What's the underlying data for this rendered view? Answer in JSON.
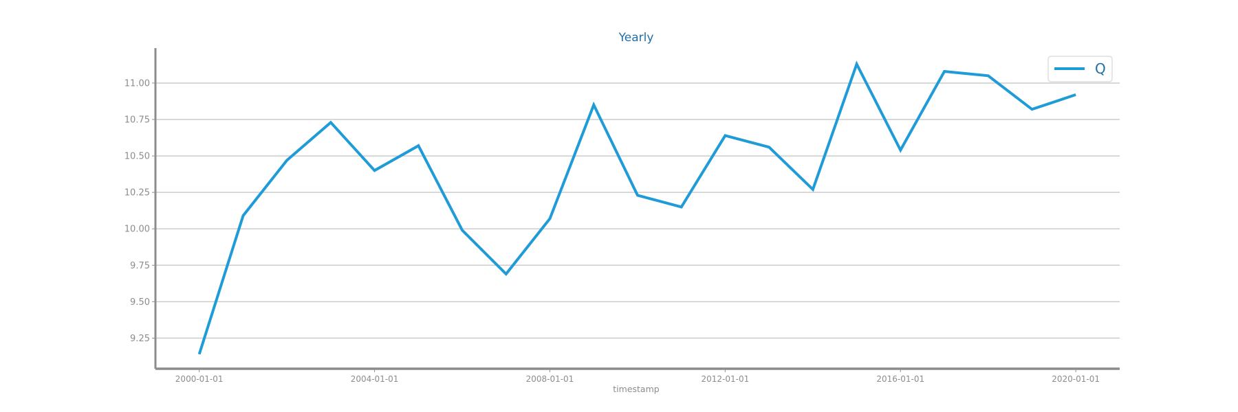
{
  "colors": {
    "series": "#1f9bd7",
    "title": "#1f6fa8",
    "axis": "#8c8c8c",
    "grid": "#cccccc",
    "legend_border": "#dddddd"
  },
  "chart_data": {
    "type": "line",
    "title": "Yearly",
    "xlabel": "timestamp",
    "ylabel": "",
    "x_ticks": [
      "2000-01-01",
      "2004-01-01",
      "2008-01-01",
      "2012-01-01",
      "2016-01-01",
      "2020-01-01"
    ],
    "y_ticks": [
      "9.25",
      "9.50",
      "9.75",
      "10.00",
      "10.25",
      "10.50",
      "10.75",
      "11.00"
    ],
    "x_range": [
      "1999-01-01",
      "2021-01-01"
    ],
    "ylim": [
      9.04,
      11.24
    ],
    "grid": "horizontal",
    "legend_position": "top-right",
    "series": [
      {
        "name": "Q",
        "x": [
          "2000-01-01",
          "2001-01-01",
          "2002-01-01",
          "2003-01-01",
          "2004-01-01",
          "2005-01-01",
          "2006-01-01",
          "2007-01-01",
          "2008-01-01",
          "2009-01-01",
          "2010-01-01",
          "2011-01-01",
          "2012-01-01",
          "2013-01-01",
          "2014-01-01",
          "2015-01-01",
          "2016-01-01",
          "2017-01-01",
          "2018-01-01",
          "2019-01-01",
          "2020-01-01"
        ],
        "values": [
          9.14,
          10.09,
          10.47,
          10.73,
          10.4,
          10.57,
          9.99,
          9.69,
          10.07,
          10.85,
          10.23,
          10.15,
          10.64,
          10.56,
          10.27,
          11.13,
          10.54,
          11.08,
          11.05,
          10.82,
          10.92
        ]
      }
    ]
  }
}
